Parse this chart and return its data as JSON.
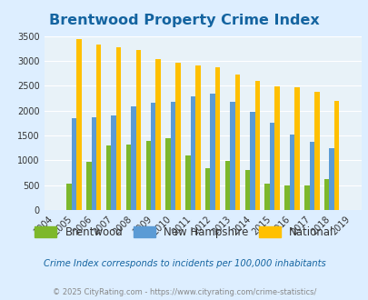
{
  "title": "Brentwood Property Crime Index",
  "title_color": "#1464a0",
  "years": [
    2004,
    2005,
    2006,
    2007,
    2008,
    2009,
    2010,
    2011,
    2012,
    2013,
    2014,
    2015,
    2016,
    2017,
    2018,
    2019
  ],
  "brentwood": [
    0,
    530,
    975,
    1300,
    1320,
    1395,
    1440,
    1100,
    840,
    990,
    800,
    525,
    490,
    490,
    620,
    0
  ],
  "new_hampshire": [
    0,
    1850,
    1860,
    1900,
    2090,
    2160,
    2175,
    2290,
    2340,
    2175,
    1970,
    1760,
    1510,
    1375,
    1240,
    0
  ],
  "national": [
    0,
    3430,
    3320,
    3270,
    3210,
    3040,
    2960,
    2900,
    2880,
    2720,
    2590,
    2490,
    2460,
    2380,
    2200,
    0
  ],
  "brentwood_color": "#7db82b",
  "nh_color": "#5b9bd5",
  "national_color": "#ffc000",
  "bg_color": "#ddeeff",
  "plot_bg_color": "#e8f2f8",
  "ylim": [
    0,
    3500
  ],
  "yticks": [
    0,
    500,
    1000,
    1500,
    2000,
    2500,
    3000,
    3500
  ],
  "bar_width": 0.25,
  "subtitle": "Crime Index corresponds to incidents per 100,000 inhabitants",
  "subtitle_color": "#1464a0",
  "footer": "© 2025 CityRating.com - https://www.cityrating.com/crime-statistics/",
  "footer_color": "#888888",
  "legend_labels": [
    "Brentwood",
    "New Hampshire",
    "National"
  ],
  "grid_color": "#ffffff"
}
